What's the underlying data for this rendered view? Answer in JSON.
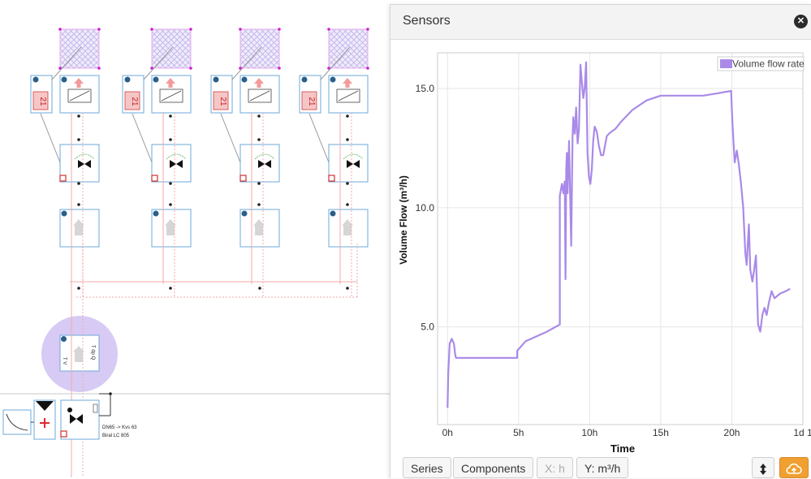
{
  "panel": {
    "title": "Sensors",
    "close_icon": "close-icon"
  },
  "toolbar": {
    "series_label": "Series",
    "components_label": "Components",
    "x_label": "X: h",
    "y_label": "Y: m³/h",
    "arrows_icon": "vertical-arrows-icon",
    "cloud_icon": "cloud-upload-icon",
    "cloud_color": "#f0a030"
  },
  "diagram": {
    "valve_spec_line1": "DN65 -> Kvs 63",
    "valve_spec_line2": "Biral LC 805",
    "counter_label": "21",
    "selection_color": "#c9b8f2"
  },
  "chart_data": {
    "type": "line",
    "xlabel": "Time",
    "ylabel": "Volume Flow (m³/h)",
    "x_ticks": [
      "0h",
      "5h",
      "10h",
      "15h",
      "20h",
      "1d 1"
    ],
    "x_tick_values": [
      0,
      5,
      10,
      15,
      20,
      25
    ],
    "y_ticks": [
      "5.0",
      "10.0",
      "15.0"
    ],
    "y_tick_values": [
      5,
      10,
      15
    ],
    "xlim": [
      -0.7,
      25
    ],
    "ylim": [
      0.9,
      16.5
    ],
    "grid": true,
    "legend_position": "top-right",
    "series": [
      {
        "name": "Volume flow rate",
        "color": "#a98ae8",
        "x": [
          0,
          0.05,
          0.15,
          0.3,
          0.45,
          0.55,
          0.6,
          0.65,
          0.8,
          1.5,
          3,
          4.9,
          4.9,
          5.5,
          7,
          7.9,
          7.9,
          8.05,
          8.15,
          8.2,
          8.25,
          8.3,
          8.35,
          8.4,
          8.45,
          8.55,
          8.7,
          8.8,
          8.85,
          8.95,
          9.05,
          9.15,
          9.25,
          9.35,
          9.45,
          9.55,
          9.65,
          9.75,
          9.85,
          9.95,
          10.05,
          10.15,
          10.25,
          10.35,
          10.5,
          10.65,
          10.8,
          10.95,
          11.05,
          11.2,
          11.35,
          11.55,
          11.8,
          12.2,
          13,
          14,
          15,
          16,
          17,
          18,
          19,
          19.95,
          20.05,
          20.2,
          20.35,
          20.5,
          20.65,
          20.8,
          20.95,
          21.05,
          21.1,
          21.2,
          21.3,
          21.45,
          21.55,
          21.7,
          21.85,
          22.0,
          22.15,
          22.3,
          22.45,
          22.6,
          22.8,
          23.0,
          23.4,
          23.8,
          24.1
        ],
        "y": [
          1.6,
          3.0,
          4.3,
          4.5,
          4.3,
          3.8,
          3.7,
          3.7,
          3.7,
          3.7,
          3.7,
          3.7,
          4.0,
          4.4,
          4.8,
          5.1,
          10.5,
          11.0,
          10.6,
          10.9,
          11.1,
          7.0,
          11.6,
          12.3,
          10.6,
          12.8,
          8.4,
          13.0,
          13.8,
          13.1,
          14.2,
          12.7,
          13.3,
          16.0,
          15.3,
          14.6,
          15.0,
          16.1,
          12.3,
          11.3,
          11.0,
          11.6,
          12.8,
          13.4,
          13.2,
          12.6,
          12.2,
          12.2,
          12.5,
          13.0,
          13.1,
          13.2,
          13.3,
          13.6,
          14.1,
          14.5,
          14.7,
          14.7,
          14.7,
          14.7,
          14.8,
          14.9,
          13.5,
          11.9,
          12.4,
          11.8,
          11.0,
          10.0,
          8.1,
          7.6,
          8.2,
          9.3,
          7.4,
          6.9,
          7.3,
          8.0,
          5.1,
          4.8,
          5.5,
          5.8,
          5.5,
          6.0,
          6.5,
          6.2,
          6.4,
          6.5,
          6.6
        ]
      }
    ]
  }
}
